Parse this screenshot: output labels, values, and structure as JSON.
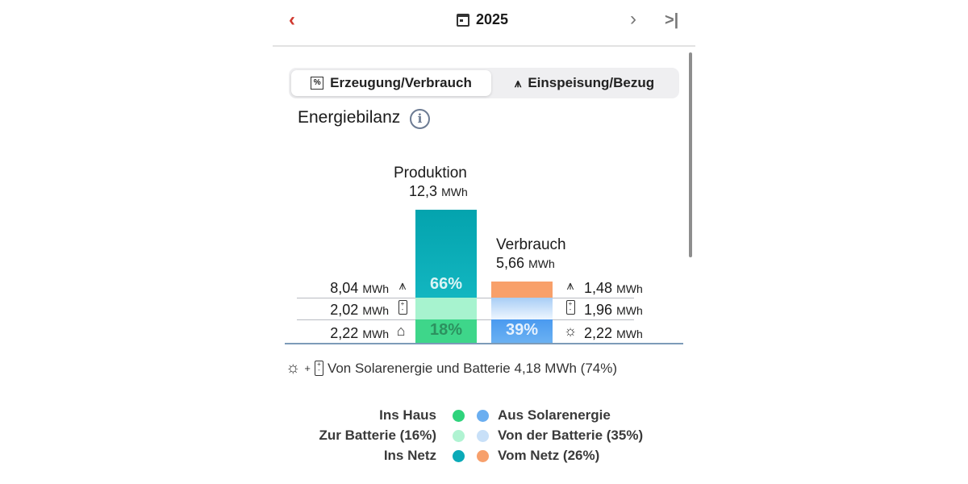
{
  "header": {
    "year": "2025",
    "prev_icon": "chevron-left-icon",
    "next_icon": "chevron-right-icon",
    "last_icon": "skip-to-end-icon",
    "calendar_icon": "calendar-icon",
    "accent": "#d0392f"
  },
  "tabs": [
    {
      "label": "Erzeugung/Verbrauch",
      "icon": "percent-square-icon",
      "active": true
    },
    {
      "label": "Einspeisung/Bezug",
      "icon": "power-pylon-icon",
      "active": false
    }
  ],
  "section_title": "Energiebilanz",
  "chart_data": {
    "type": "bar",
    "stacked": true,
    "categories": [
      "Produktion",
      "Verbrauch"
    ],
    "totals": [
      {
        "label": "Produktion",
        "value": "12,3",
        "unit": "MWh"
      },
      {
        "label": "Verbrauch",
        "value": "5,66",
        "unit": "MWh"
      }
    ],
    "production": [
      {
        "value": "8,04",
        "unit": "MWh",
        "icon": "power-pylon-icon",
        "pct_label": "66%",
        "color": "#0aa8b4"
      },
      {
        "value": "2,02",
        "unit": "MWh",
        "icon": "battery-icon",
        "pct_label": "",
        "color": "#a7f3cf"
      },
      {
        "value": "2,22",
        "unit": "MWh",
        "icon": "house-icon",
        "pct_label": "18%",
        "color": "#3ed68a"
      }
    ],
    "consumption": [
      {
        "value": "1,48",
        "unit": "MWh",
        "icon": "power-pylon-icon",
        "pct_label": "",
        "color": "#f8a06a"
      },
      {
        "value": "1,96",
        "unit": "MWh",
        "icon": "battery-icon",
        "pct_label": "",
        "color": "#c4dff8"
      },
      {
        "value": "2,22",
        "unit": "MWh",
        "icon": "sun-icon",
        "pct_label": "39%",
        "color": "#5aa6ee"
      }
    ]
  },
  "summary": {
    "plus": "+",
    "text": "Von Solarenergie und Batterie 4,18 MWh (74%)"
  },
  "legend": {
    "left": [
      {
        "label": "Ins Haus",
        "color": "#2fd37c"
      },
      {
        "label": "Zur Batterie (16%)",
        "color": "#b0f3d2"
      },
      {
        "label": "Ins Netz",
        "color": "#0aaab8"
      }
    ],
    "right": [
      {
        "label": "Aus Solarenergie",
        "color": "#6aaef0"
      },
      {
        "label": "Von der Batterie (35%)",
        "color": "#c8e0f8"
      },
      {
        "label": "Vom Netz (26%)",
        "color": "#f7a06c"
      }
    ]
  }
}
